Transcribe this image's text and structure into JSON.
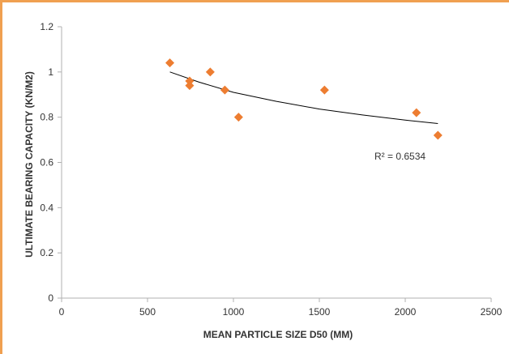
{
  "chart_data": {
    "type": "scatter",
    "title": "",
    "xlabel": "MEAN PARTICLE SIZE D50 (MM)",
    "ylabel": "ULTIMATE BEARING CAPACITY (KN/M2)",
    "xlim": [
      0,
      2500
    ],
    "ylim": [
      0,
      1.2
    ],
    "x_ticks": [
      0,
      500,
      1000,
      1500,
      2000,
      2500
    ],
    "y_ticks": [
      0,
      0.2,
      0.4,
      0.6,
      0.8,
      1,
      1.2
    ],
    "x_tick_labels": [
      "0",
      "500",
      "1000",
      "1500",
      "2000",
      "2500"
    ],
    "y_tick_labels": [
      "0",
      "0.2",
      "0.4",
      "0.6",
      "0.8",
      "1",
      "1.2"
    ],
    "grid": false,
    "marker": "diamond",
    "marker_color": "#ed7d31",
    "points": [
      {
        "x": 630,
        "y": 1.04
      },
      {
        "x": 745,
        "y": 0.96
      },
      {
        "x": 745,
        "y": 0.94
      },
      {
        "x": 865,
        "y": 1.0
      },
      {
        "x": 950,
        "y": 0.92
      },
      {
        "x": 1030,
        "y": 0.8
      },
      {
        "x": 1530,
        "y": 0.92
      },
      {
        "x": 2065,
        "y": 0.82
      },
      {
        "x": 2190,
        "y": 0.72
      }
    ],
    "trendline": {
      "type": "power",
      "color": "#000000",
      "x_range": [
        630,
        2190
      ],
      "curve": [
        {
          "x": 630,
          "y": 1.0
        },
        {
          "x": 800,
          "y": 0.955
        },
        {
          "x": 1000,
          "y": 0.91
        },
        {
          "x": 1250,
          "y": 0.87
        },
        {
          "x": 1500,
          "y": 0.836
        },
        {
          "x": 1750,
          "y": 0.81
        },
        {
          "x": 2000,
          "y": 0.787
        },
        {
          "x": 2190,
          "y": 0.772
        }
      ],
      "r_squared_label": "R² = 0.6534"
    }
  }
}
